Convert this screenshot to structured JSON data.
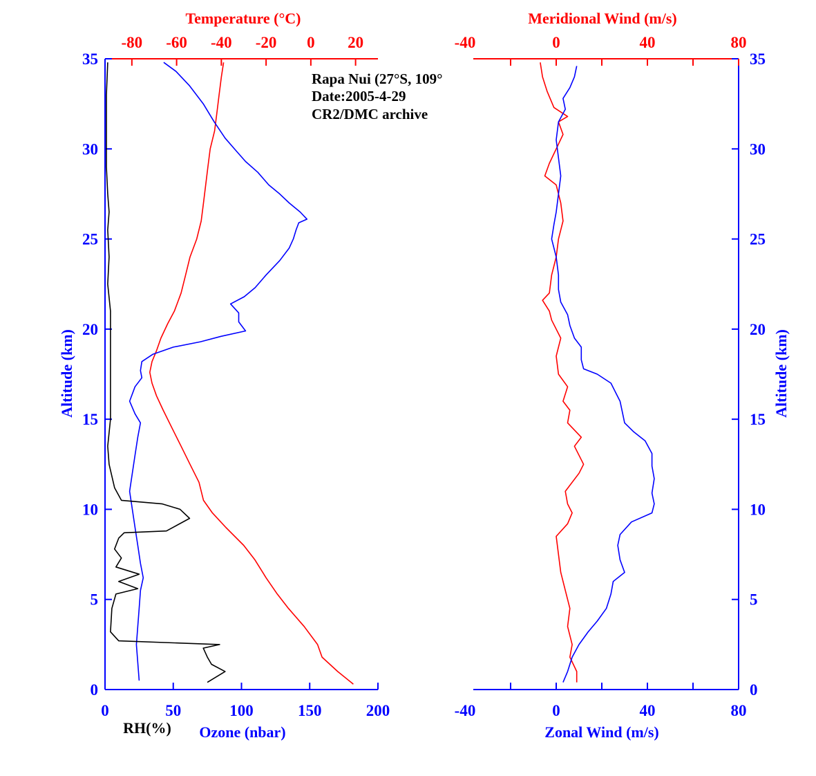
{
  "colors": {
    "blue": "#0000ff",
    "red": "#ff0000",
    "black": "#000000"
  },
  "annotation": [
    "Rapa Nui (27°S, 109°",
    "Date:2005-4-29",
    "CR2/DMC archive"
  ],
  "chart_data": [
    {
      "type": "line",
      "panel": "left",
      "top_xlabel": "Temperature (°C)",
      "bottom_xlabels": [
        "RH(%)",
        "Ozone (nbar)"
      ],
      "ylabel": "Altitude (km)",
      "ylim": [
        0,
        35
      ],
      "yticks": [
        "0",
        "5",
        "10",
        "15",
        "20",
        "25",
        "30",
        "35"
      ],
      "bottom_xlim": [
        0,
        200
      ],
      "bottom_ticks": [
        "0",
        "50",
        "100",
        "150",
        "200"
      ],
      "top_xlim": [
        -92,
        30
      ],
      "top_ticks": [
        "-80",
        "-60",
        "-40",
        "-20",
        "0",
        "20"
      ],
      "top_tick_values": [
        -80,
        -60,
        -40,
        -20,
        0,
        20
      ],
      "series": [
        {
          "axis": "top",
          "color": "red",
          "points": [
            [
              19,
              0.3
            ],
            [
              12,
              1
            ],
            [
              5,
              1.8
            ],
            [
              3,
              2.5
            ],
            [
              -3,
              3.5
            ],
            [
              -10,
              4.5
            ],
            [
              -15,
              5.3
            ],
            [
              -20,
              6.2
            ],
            [
              -25,
              7.2
            ],
            [
              -30,
              8
            ],
            [
              -38,
              9
            ],
            [
              -44,
              9.8
            ],
            [
              -48,
              10.5
            ],
            [
              -50,
              11.5
            ],
            [
              -54,
              12.5
            ],
            [
              -58,
              13.5
            ],
            [
              -62,
              14.5
            ],
            [
              -66,
              15.5
            ],
            [
              -69,
              16.3
            ],
            [
              -71,
              17
            ],
            [
              -72,
              17.6
            ],
            [
              -71,
              18.2
            ],
            [
              -69,
              18.8
            ],
            [
              -67,
              19.5
            ],
            [
              -64,
              20.3
            ],
            [
              -61,
              21
            ],
            [
              -58,
              22
            ],
            [
              -56,
              23
            ],
            [
              -54,
              24
            ],
            [
              -51,
              25
            ],
            [
              -49,
              26
            ],
            [
              -48,
              27
            ],
            [
              -47,
              28
            ],
            [
              -46,
              29
            ],
            [
              -45,
              30
            ],
            [
              -43,
              31
            ],
            [
              -42,
              32
            ],
            [
              -41,
              33
            ],
            [
              -40,
              34
            ],
            [
              -39,
              34.8
            ]
          ]
        },
        {
          "axis": "bottom",
          "color": "blue",
          "points": [
            [
              25,
              0.5
            ],
            [
              24,
              1.5
            ],
            [
              23,
              2.5
            ],
            [
              24,
              3.5
            ],
            [
              25,
              4.5
            ],
            [
              26,
              5.5
            ],
            [
              28,
              6.2
            ],
            [
              26,
              7
            ],
            [
              24,
              8
            ],
            [
              22,
              9
            ],
            [
              20,
              10
            ],
            [
              18,
              11
            ],
            [
              20,
              12
            ],
            [
              22,
              13
            ],
            [
              24,
              14
            ],
            [
              26,
              14.8
            ],
            [
              22,
              15.3
            ],
            [
              18,
              16
            ],
            [
              22,
              16.8
            ],
            [
              27,
              17.3
            ],
            [
              26,
              17.7
            ],
            [
              27,
              18.2
            ],
            [
              35,
              18.6
            ],
            [
              50,
              19
            ],
            [
              70,
              19.3
            ],
            [
              85,
              19.6
            ],
            [
              103,
              19.9
            ],
            [
              98,
              20.4
            ],
            [
              98,
              20.9
            ],
            [
              92,
              21.4
            ],
            [
              102,
              21.8
            ],
            [
              110,
              22.3
            ],
            [
              118,
              23
            ],
            [
              128,
              23.8
            ],
            [
              135,
              24.5
            ],
            [
              138,
              25
            ],
            [
              140,
              25.5
            ],
            [
              142,
              25.9
            ],
            [
              148,
              26.1
            ],
            [
              143,
              26.5
            ],
            [
              135,
              27
            ],
            [
              128,
              27.5
            ],
            [
              120,
              28
            ],
            [
              112,
              28.7
            ],
            [
              103,
              29.3
            ],
            [
              96,
              29.9
            ],
            [
              88,
              30.6
            ],
            [
              80,
              31.5
            ],
            [
              72,
              32.5
            ],
            [
              62,
              33.5
            ],
            [
              52,
              34.3
            ],
            [
              43,
              34.8
            ]
          ]
        },
        {
          "axis": "bottom",
          "color": "black",
          "points": [
            [
              75,
              0.4
            ],
            [
              88,
              1
            ],
            [
              78,
              1.4
            ],
            [
              75,
              1.8
            ],
            [
              72,
              2.3
            ],
            [
              84,
              2.5
            ],
            [
              10,
              2.7
            ],
            [
              4,
              3.2
            ],
            [
              5,
              4.5
            ],
            [
              8,
              5.3
            ],
            [
              24,
              5.6
            ],
            [
              10,
              6
            ],
            [
              25,
              6.4
            ],
            [
              8,
              6.8
            ],
            [
              12,
              7.3
            ],
            [
              7,
              7.8
            ],
            [
              10,
              8.4
            ],
            [
              14,
              8.7
            ],
            [
              45,
              8.8
            ],
            [
              62,
              9.5
            ],
            [
              55,
              10
            ],
            [
              42,
              10.3
            ],
            [
              12,
              10.5
            ],
            [
              7,
              11.2
            ],
            [
              3,
              12.5
            ],
            [
              2,
              13.5
            ],
            [
              4,
              15
            ],
            [
              4,
              17
            ],
            [
              4,
              19
            ],
            [
              4,
              21
            ],
            [
              2,
              22.5
            ],
            [
              3,
              24
            ],
            [
              2,
              25.5
            ],
            [
              3,
              26.5
            ],
            [
              2,
              27.5
            ],
            [
              1,
              29
            ],
            [
              1,
              31
            ],
            [
              1,
              33
            ],
            [
              2,
              34.8
            ]
          ]
        }
      ]
    },
    {
      "type": "line",
      "panel": "right",
      "top_xlabel": "Meridional Wind (m/s)",
      "bottom_xlabel": "Zonal Wind (m/s)",
      "ylabel": "Altitude (km)",
      "ylim": [
        0,
        35
      ],
      "yticks": [
        "0",
        "5",
        "10",
        "15",
        "20",
        "25",
        "30",
        "35"
      ],
      "xlim": [
        -40,
        80
      ],
      "xticks": [
        "-40",
        "0",
        "40",
        "80"
      ],
      "top_ticks": [
        "-40",
        "0",
        "40",
        "80"
      ],
      "series": [
        {
          "axis": "top",
          "color": "red",
          "points": [
            [
              9,
              0.4
            ],
            [
              9,
              1
            ],
            [
              6,
              1.8
            ],
            [
              7,
              2.5
            ],
            [
              5,
              3.5
            ],
            [
              6,
              4.5
            ],
            [
              4,
              5.5
            ],
            [
              2,
              6.5
            ],
            [
              1,
              7.5
            ],
            [
              0,
              8.5
            ],
            [
              5,
              9.2
            ],
            [
              7,
              9.8
            ],
            [
              5,
              10.3
            ],
            [
              4,
              11
            ],
            [
              10,
              12
            ],
            [
              12,
              12.5
            ],
            [
              8,
              13.5
            ],
            [
              11,
              14
            ],
            [
              5,
              14.8
            ],
            [
              6,
              15.5
            ],
            [
              3,
              16
            ],
            [
              5,
              16.8
            ],
            [
              1,
              17.5
            ],
            [
              0,
              18.5
            ],
            [
              2,
              19.5
            ],
            [
              -2,
              20.5
            ],
            [
              -3,
              21
            ],
            [
              -6,
              21.6
            ],
            [
              -3,
              22
            ],
            [
              -2,
              23
            ],
            [
              0,
              24
            ],
            [
              1,
              25
            ],
            [
              3,
              26
            ],
            [
              2,
              27
            ],
            [
              0,
              28
            ],
            [
              -5,
              28.5
            ],
            [
              -3,
              29.2
            ],
            [
              0,
              30
            ],
            [
              3,
              30.8
            ],
            [
              1,
              31.5
            ],
            [
              5,
              31.8
            ],
            [
              -1,
              32.3
            ],
            [
              -4,
              33.2
            ],
            [
              -6,
              34
            ],
            [
              -7,
              34.8
            ]
          ]
        },
        {
          "axis": "bottom",
          "color": "blue",
          "points": [
            [
              3,
              0.4
            ],
            [
              5,
              1
            ],
            [
              7,
              1.8
            ],
            [
              10,
              2.5
            ],
            [
              14,
              3.2
            ],
            [
              18,
              3.8
            ],
            [
              22,
              4.5
            ],
            [
              24,
              5.3
            ],
            [
              25,
              6
            ],
            [
              30,
              6.5
            ],
            [
              28,
              7.2
            ],
            [
              27,
              8
            ],
            [
              28,
              8.6
            ],
            [
              33,
              9.3
            ],
            [
              42,
              9.8
            ],
            [
              43,
              10.3
            ],
            [
              42,
              10.9
            ],
            [
              43,
              11.7
            ],
            [
              42,
              12.4
            ],
            [
              42,
              13.1
            ],
            [
              39,
              13.8
            ],
            [
              34,
              14.3
            ],
            [
              30,
              14.8
            ],
            [
              29,
              15.4
            ],
            [
              28,
              16
            ],
            [
              26,
              16.5
            ],
            [
              24,
              17
            ],
            [
              18,
              17.5
            ],
            [
              12,
              17.8
            ],
            [
              11,
              18.3
            ],
            [
              11,
              19
            ],
            [
              8,
              19.5
            ],
            [
              6,
              20.2
            ],
            [
              5,
              20.8
            ],
            [
              2,
              21.5
            ],
            [
              1,
              22.2
            ],
            [
              1,
              23
            ],
            [
              0,
              24
            ],
            [
              -2,
              25
            ],
            [
              -1,
              25.8
            ],
            [
              0,
              26.5
            ],
            [
              1,
              27.5
            ],
            [
              2,
              28.5
            ],
            [
              1,
              29.5
            ],
            [
              0,
              30.5
            ],
            [
              1,
              31.5
            ],
            [
              4,
              32.2
            ],
            [
              3,
              32.8
            ],
            [
              6,
              33.4
            ],
            [
              8,
              34
            ],
            [
              9,
              34.6
            ]
          ]
        }
      ]
    }
  ]
}
